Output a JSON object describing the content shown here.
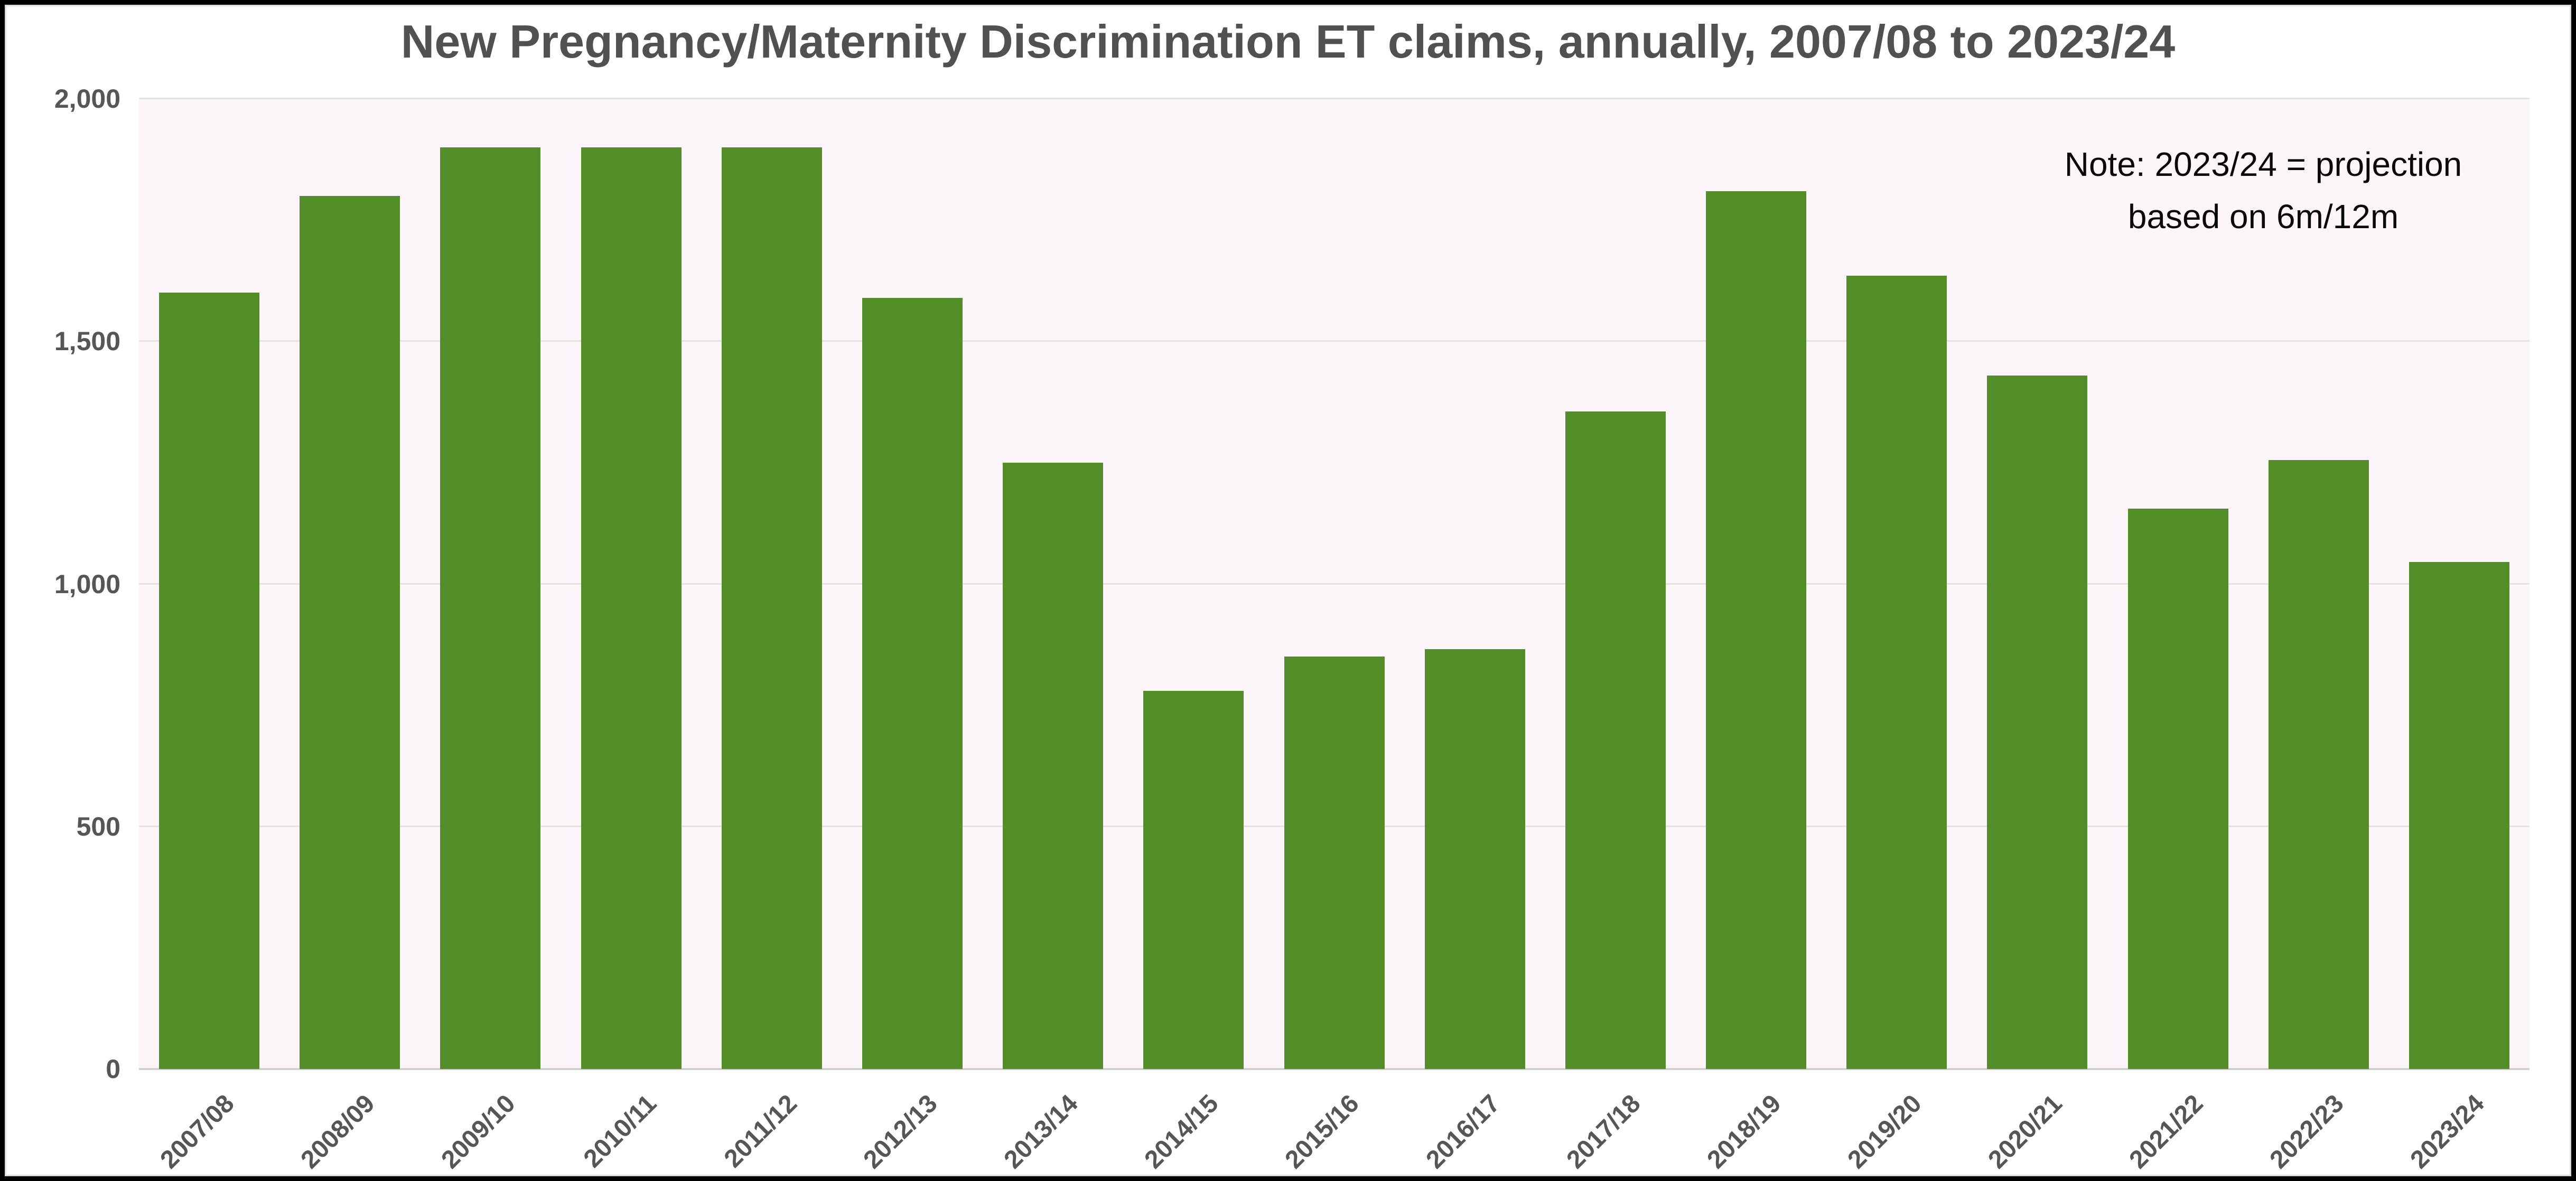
{
  "chart_data": {
    "type": "bar",
    "title": "New Pregnancy/Maternity Discrimination ET claims, annually, 2007/08 to 2023/24",
    "xlabel": "",
    "ylabel": "",
    "categories": [
      "2007/08",
      "2008/09",
      "2009/10",
      "2010/11",
      "2011/12",
      "2012/13",
      "2013/14",
      "2014/15",
      "2015/16",
      "2016/17",
      "2017/18",
      "2018/19",
      "2019/20",
      "2020/21",
      "2021/22",
      "2022/23",
      "2023/24"
    ],
    "values": [
      1600,
      1800,
      1900,
      1900,
      1900,
      1590,
      1250,
      780,
      850,
      865,
      1355,
      1810,
      1635,
      1430,
      1155,
      1255,
      1045
    ],
    "ylim": [
      0,
      2000
    ],
    "tick_values": [
      0,
      500,
      1000,
      1500,
      2000
    ],
    "tick_labels": [
      "0",
      "500",
      "1,000",
      "1,500",
      "2,000"
    ],
    "grid": "horizontal-major-only",
    "legend": "none",
    "annotation_lines": [
      "Note: 2023/24 = projection",
      "based on 6m/12m"
    ],
    "bar_color": "#538e29",
    "plot_bg": "#fcf6fb",
    "gridline_color": "#e3e3e3",
    "baseline_color": "#d2d2d2",
    "title_color": "#515151",
    "tick_color": "#565656",
    "annotation_color": "#0a0a0a",
    "frame_color": "#000000"
  }
}
